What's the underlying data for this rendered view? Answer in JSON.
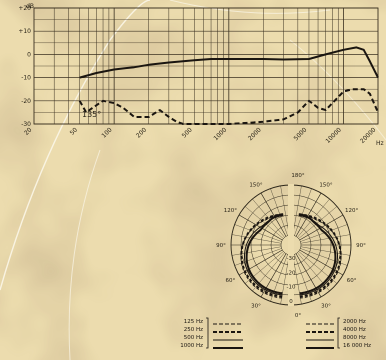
{
  "chart_data": [
    {
      "type": "line",
      "x_ticks": [
        "20",
        "50",
        "100",
        "200",
        "500",
        "1000",
        "2000",
        "5000",
        "10000",
        "20000"
      ],
      "y_ticks": [
        "+20",
        "+10",
        "0",
        "-10",
        "-20",
        "-30"
      ],
      "ylabel": "dB",
      "xlabel": "Hz",
      "xlim": [
        20,
        20000
      ],
      "ylim": [
        -30,
        20
      ],
      "x_scale": "log",
      "grid": true,
      "annotation": "135°",
      "series": [
        {
          "style": "solid",
          "x": [
            50,
            70,
            100,
            150,
            200,
            300,
            500,
            700,
            1000,
            1500,
            2000,
            3000,
            5000,
            7000,
            10000,
            13000,
            15000,
            17000,
            20000
          ],
          "y": [
            -10,
            -8,
            -6.5,
            -5.5,
            -4.5,
            -3.5,
            -2.5,
            -2,
            -2,
            -2,
            -2,
            -2.2,
            -2,
            0,
            2,
            3,
            2,
            -3,
            -10
          ]
        },
        {
          "style": "dashed",
          "x": [
            50,
            57,
            65,
            80,
            100,
            120,
            150,
            200,
            250,
            300,
            350,
            400,
            500,
            700,
            1000,
            1500,
            2000,
            3000,
            4000,
            5000,
            6000,
            7000,
            8000,
            10000,
            12000,
            15000,
            17000,
            20000
          ],
          "y": [
            -20,
            -25,
            -23,
            -20,
            -21,
            -23,
            -27,
            -27,
            -24,
            -27,
            -29,
            -30,
            -30,
            -30,
            -30,
            -29.5,
            -29,
            -28,
            -25,
            -20,
            -23,
            -24,
            -21,
            -16,
            -15,
            -15,
            -17,
            -25
          ]
        }
      ]
    },
    {
      "type": "polar",
      "angle_labels": [
        "0°",
        "30°",
        "60°",
        "90°",
        "120°",
        "150°",
        "180°"
      ],
      "radial_labels": [
        "0",
        "-10",
        "-20",
        "-30"
      ],
      "legend": {
        "left": [
          "125 Hz",
          "250 Hz",
          "500 Hz",
          "1000 Hz"
        ],
        "right": [
          "2000 Hz",
          "4000 Hz",
          "8000 Hz",
          "16 000 Hz"
        ]
      }
    }
  ]
}
